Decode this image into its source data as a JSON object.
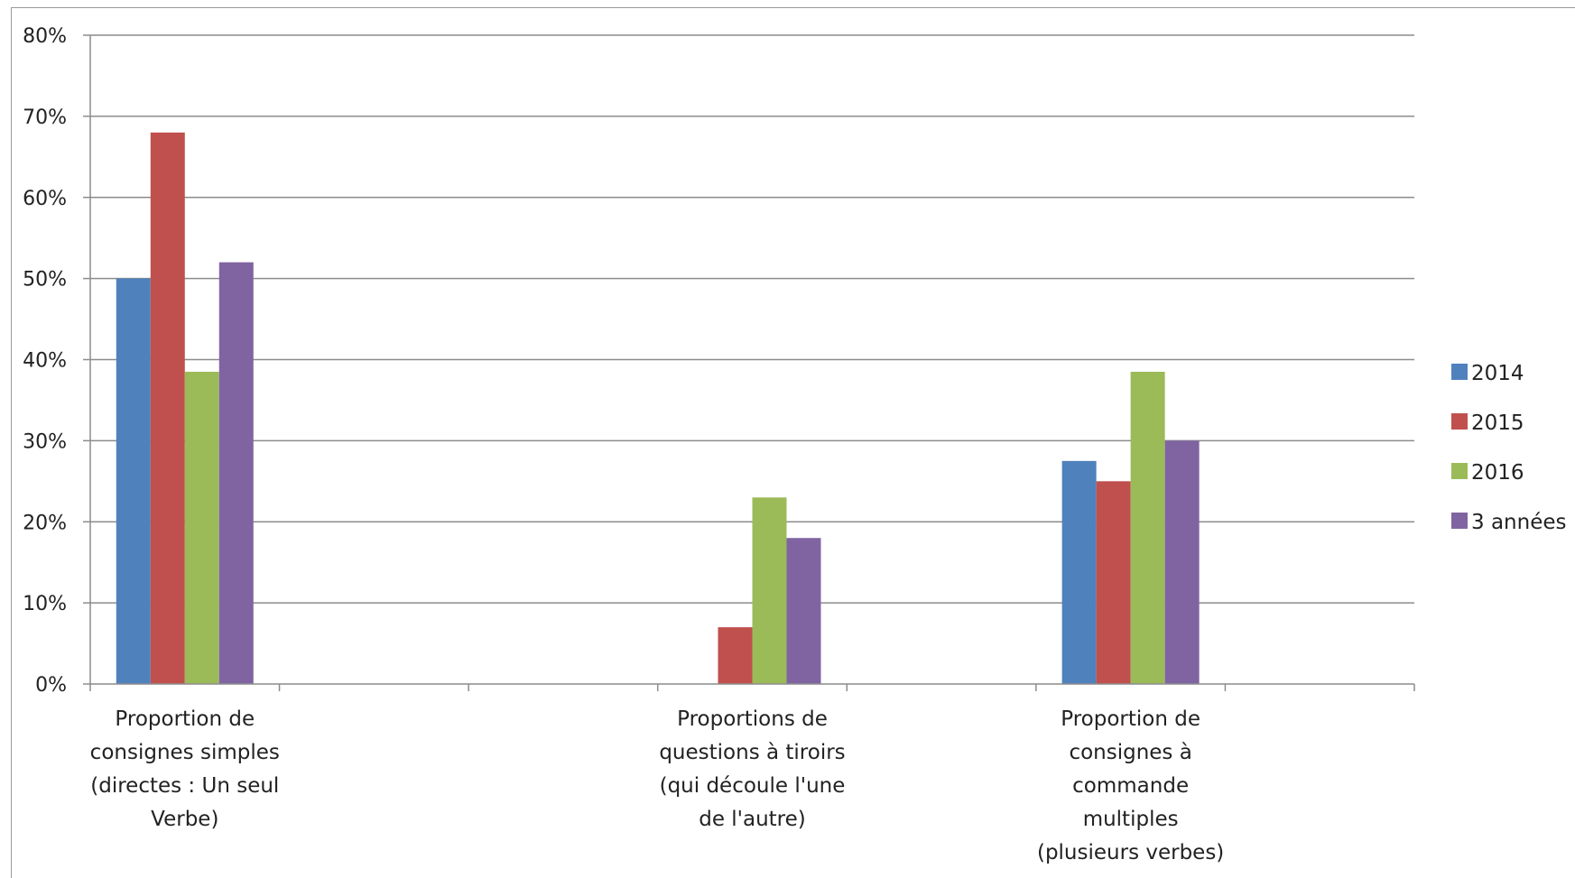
{
  "chart_data": {
    "type": "bar",
    "categories": [
      [
        "Proportion de",
        "consignes simples",
        "(directes : Un seul",
        "Verbe)"
      ],
      [
        "",
        "",
        "",
        ""
      ],
      [
        "",
        "",
        "",
        ""
      ],
      [
        "Proportions de",
        "questions à tiroirs",
        "(qui découle l'une",
        "de l'autre)"
      ],
      [
        "",
        "",
        "",
        ""
      ],
      [
        "Proportion de",
        "consignes à",
        "commande",
        "multiples",
        "(plusieurs verbes)"
      ],
      [
        "",
        "",
        "",
        ""
      ]
    ],
    "series": [
      {
        "name": "2014",
        "color": "#4f81bd",
        "values": [
          50,
          0,
          0,
          0,
          0,
          27.5,
          0
        ]
      },
      {
        "name": "2015",
        "color": "#c0504d",
        "values": [
          68,
          0,
          0,
          7,
          0,
          25,
          0
        ]
      },
      {
        "name": "2016",
        "color": "#9bbb59",
        "values": [
          38.5,
          0,
          0,
          23,
          0,
          38.5,
          0
        ]
      },
      {
        "name": "3 années",
        "color": "#8064a2",
        "values": [
          52,
          0,
          0,
          18,
          0,
          30,
          0
        ]
      }
    ],
    "yticks": [
      "0%",
      "10%",
      "20%",
      "30%",
      "40%",
      "50%",
      "60%",
      "70%",
      "80%"
    ],
    "ylim": [
      0,
      80
    ],
    "grid": true,
    "legend_position": "right",
    "title": "",
    "xlabel": "",
    "ylabel": ""
  }
}
